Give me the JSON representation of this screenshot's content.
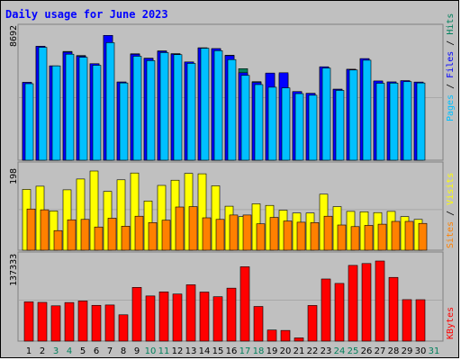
{
  "title": "Daily usage for June 2023",
  "colors": {
    "background": "#c0c0c0",
    "hits": "#00805c",
    "files": "#0000ff",
    "pages": "#00c0ff",
    "visits": "#ffff00",
    "sites": "#ff8000",
    "kbytes": "#ff0000",
    "title": "#0000ff",
    "weekend_label": "#00805c",
    "weekday_label": "#000000"
  },
  "legends": {
    "top": {
      "pages": "Pages",
      "files": "Files",
      "hits": "Hits",
      "sep": " / "
    },
    "middle": {
      "sites": "Sites",
      "visits": "Visits",
      "sep": " / "
    },
    "bottom": {
      "kbytes": "KBytes"
    }
  },
  "chart_data": {
    "type": "bar",
    "title": "Daily usage for June 2023",
    "categories": [
      "1",
      "2",
      "3",
      "4",
      "5",
      "6",
      "7",
      "8",
      "9",
      "10",
      "11",
      "12",
      "13",
      "14",
      "15",
      "16",
      "17",
      "18",
      "19",
      "20",
      "21",
      "22",
      "23",
      "24",
      "25",
      "26",
      "27",
      "28",
      "29",
      "30",
      "31"
    ],
    "weekend_days": [
      "3",
      "4",
      "10",
      "11",
      "17",
      "18",
      "24",
      "25",
      "31"
    ],
    "panels": [
      {
        "name": "hits-files-pages",
        "ymax_label": "8692",
        "ylim": [
          0,
          8692
        ],
        "series": [
          {
            "name": "Hits",
            "values": [
              5330,
              7800,
              6460,
              7450,
              7170,
              6610,
              8550,
              5360,
              7290,
              6990,
              7490,
              7300,
              6730,
              7700,
              7640,
              7190,
              6270,
              5380,
              5920,
              5880,
              4700,
              4580,
              6380,
              4870,
              6230,
              6950,
              5410,
              5360,
              5440,
              5350,
              null
            ]
          },
          {
            "name": "Files",
            "values": [
              5330,
              7800,
              6460,
              7400,
              7120,
              6610,
              8550,
              5350,
              7260,
              6970,
              7460,
              7270,
              6730,
              7690,
              7640,
              7160,
              5990,
              5330,
              5970,
              5990,
              4700,
              4580,
              6400,
              4850,
              6220,
              6960,
              5430,
              5360,
              5450,
              5350,
              null
            ]
          },
          {
            "name": "Pages",
            "values": [
              5240,
              7730,
              6460,
              7260,
              7050,
              6500,
              8050,
              5290,
              7120,
              6820,
              7370,
              7230,
              6630,
              7670,
              7500,
              6890,
              5810,
              5180,
              5000,
              4950,
              4560,
              4450,
              6310,
              4780,
              6180,
              6850,
              5270,
              5280,
              5380,
              5290,
              null
            ]
          }
        ]
      },
      {
        "name": "visits-sites",
        "ymax_label": "198",
        "ylim": [
          0,
          198
        ],
        "series": [
          {
            "name": "Visits",
            "values": [
              152,
              160,
              98,
              151,
              178,
              198,
              147,
              176,
              193,
              123,
              162,
              175,
              192,
              191,
              161,
              110,
              84,
              116,
              112,
              100,
              93,
              93,
              140,
              109,
              97,
              96,
              94,
              97,
              84,
              77,
              null
            ]
          },
          {
            "name": "Sites",
            "values": [
              103,
              101,
              49,
              76,
              77,
              58,
              80,
              60,
              85,
              69,
              75,
              108,
              109,
              81,
              77,
              88,
              88,
              66,
              82,
              73,
              70,
              69,
              85,
              63,
              59,
              62,
              65,
              72,
              72,
              67,
              null
            ]
          }
        ]
      },
      {
        "name": "kbytes",
        "ymax_label": "137333",
        "ylim": [
          0,
          137333
        ],
        "series": [
          {
            "name": "KBytes",
            "values": [
              67300,
              66400,
              60500,
              66100,
              68800,
              61300,
              61900,
              45100,
              92100,
              77400,
              84400,
              80700,
              96600,
              84100,
              76100,
              90800,
              127500,
              59400,
              19000,
              18300,
              5500,
              61100,
              106500,
              98900,
              129800,
              133000,
              137333,
              109200,
              71100,
              71000,
              null
            ]
          }
        ]
      }
    ]
  }
}
